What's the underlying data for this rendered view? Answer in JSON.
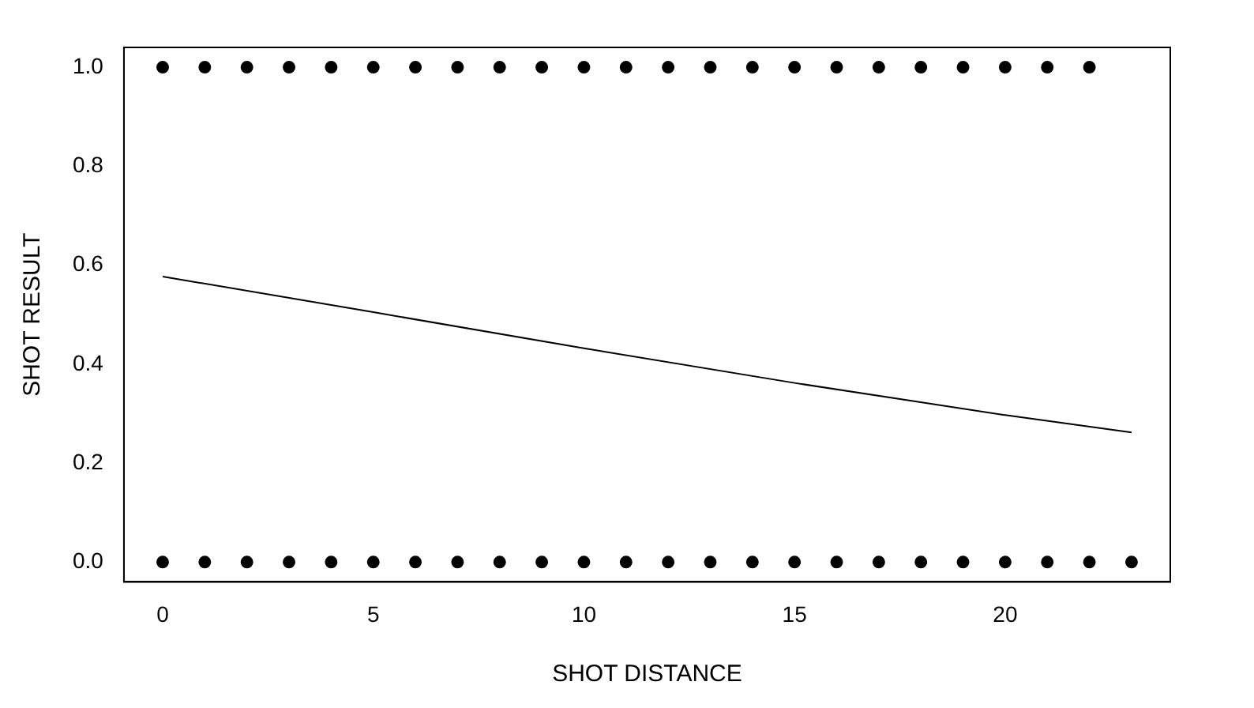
{
  "chart_data": {
    "type": "scatter",
    "xlabel": "SHOT DISTANCE",
    "ylabel": "SHOT RESULT",
    "xlim": [
      -0.92,
      23.92
    ],
    "ylim": [
      -0.04,
      1.04
    ],
    "xticks": [
      0,
      5,
      10,
      15,
      20
    ],
    "yticks": [
      {
        "value": 0,
        "label": "0.0"
      },
      0.2,
      0.4,
      0.6,
      0.8,
      {
        "value": 1,
        "label": "1.0"
      }
    ],
    "grid": false,
    "legend": false,
    "marker": "circle",
    "series": [
      {
        "type": "scatter",
        "color": "#000000",
        "x": [
          0,
          1,
          2,
          3,
          4,
          5,
          6,
          7,
          8,
          9,
          10,
          11,
          12,
          13,
          14,
          15,
          16,
          17,
          18,
          19,
          20,
          21,
          22
        ],
        "values": [
          1,
          1,
          1,
          1,
          1,
          1,
          1,
          1,
          1,
          1,
          1,
          1,
          1,
          1,
          1,
          1,
          1,
          1,
          1,
          1,
          1,
          1,
          1
        ]
      },
      {
        "type": "scatter",
        "color": "#000000",
        "x": [
          0,
          1,
          2,
          3,
          4,
          5,
          6,
          7,
          8,
          9,
          10,
          11,
          12,
          13,
          14,
          15,
          16,
          17,
          18,
          19,
          20,
          21,
          22,
          23
        ],
        "values": [
          0,
          0,
          0,
          0,
          0,
          0,
          0,
          0,
          0,
          0,
          0,
          0,
          0,
          0,
          0,
          0,
          0,
          0,
          0,
          0,
          0,
          0,
          0,
          0
        ]
      },
      {
        "type": "line",
        "color": "#000000",
        "marker": "none",
        "line_style": "solid",
        "x": [
          0,
          5,
          10,
          15,
          20,
          23
        ],
        "values": [
          0.577,
          0.505,
          0.432,
          0.362,
          0.297,
          0.262
        ]
      }
    ]
  }
}
